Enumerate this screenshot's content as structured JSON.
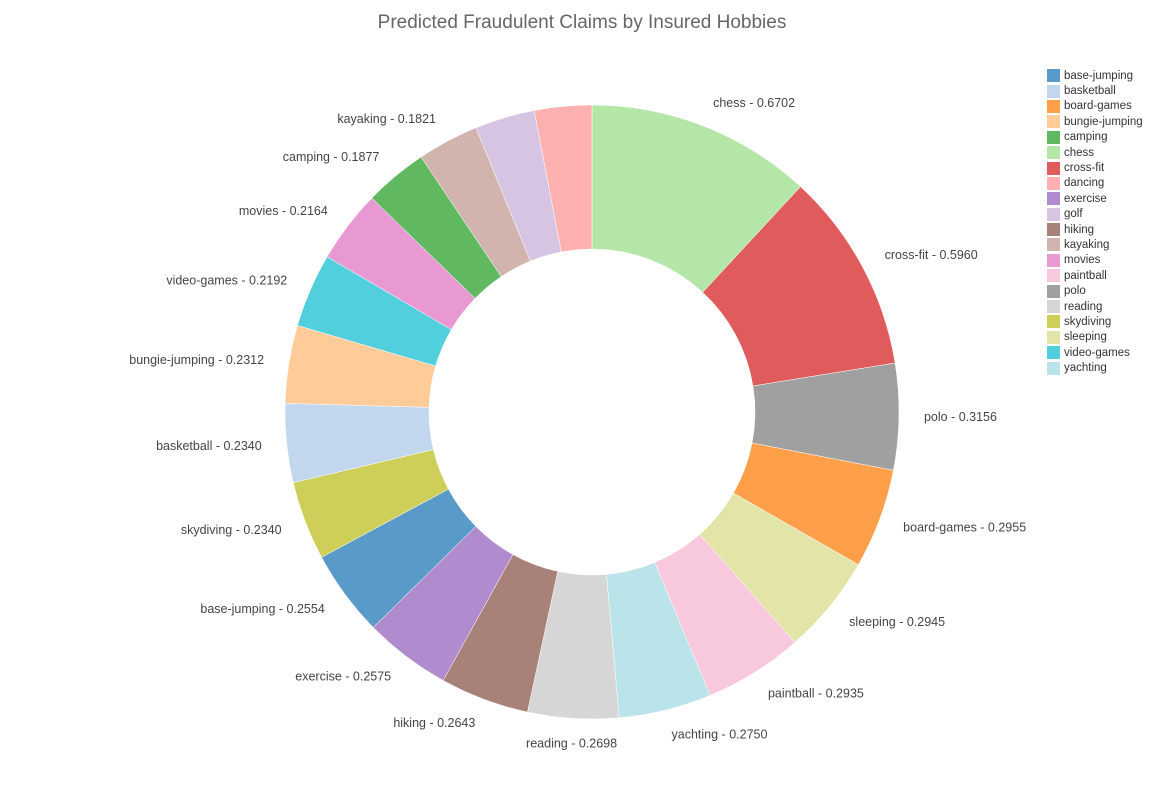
{
  "chart_data": {
    "type": "pie",
    "title": "Predicted Fraudulent Claims by Insured Hobbies",
    "hole": true,
    "legend_position": "top-right",
    "slices": [
      {
        "label": "chess",
        "value": 0.6702,
        "color": "#b3e6a7"
      },
      {
        "label": "cross-fit",
        "value": 0.596,
        "color": "#e05c5c"
      },
      {
        "label": "polo",
        "value": 0.3156,
        "color": "#a0a0a0"
      },
      {
        "label": "board-games",
        "value": 0.2955,
        "color": "#ff9f4a"
      },
      {
        "label": "sleeping",
        "value": 0.2945,
        "color": "#e2e4a8"
      },
      {
        "label": "paintball",
        "value": 0.2935,
        "color": "#f8c8dc"
      },
      {
        "label": "yachting",
        "value": 0.275,
        "color": "#bae3ea"
      },
      {
        "label": "reading",
        "value": 0.2698,
        "color": "#d6d6d6"
      },
      {
        "label": "hiking",
        "value": 0.2643,
        "color": "#a88178"
      },
      {
        "label": "exercise",
        "value": 0.2575,
        "color": "#b08ccf"
      },
      {
        "label": "base-jumping",
        "value": 0.2554,
        "color": "#599ac9"
      },
      {
        "label": "skydiving",
        "value": 0.234,
        "color": "#cdcf59"
      },
      {
        "label": "basketball",
        "value": 0.234,
        "color": "#c2d6ee"
      },
      {
        "label": "bungie-jumping",
        "value": 0.2312,
        "color": "#ffcc99"
      },
      {
        "label": "video-games",
        "value": 0.2192,
        "color": "#52cfdd"
      },
      {
        "label": "movies",
        "value": 0.2164,
        "color": "#e899d2"
      },
      {
        "label": "camping",
        "value": 0.1877,
        "color": "#60b860"
      },
      {
        "label": "kayaking",
        "value": 0.1821,
        "color": "#d2b4ae"
      },
      {
        "label": "golf",
        "value": 0.178,
        "color": "#d6c4e2"
      },
      {
        "label": "dancing",
        "value": 0.17,
        "color": "#ffb0b0"
      }
    ],
    "legend": [
      "base-jumping",
      "basketball",
      "board-games",
      "bungie-jumping",
      "camping",
      "chess",
      "cross-fit",
      "dancing",
      "exercise",
      "golf",
      "hiking",
      "kayaking",
      "movies",
      "paintball",
      "polo",
      "reading",
      "skydiving",
      "sleeping",
      "video-games",
      "yachting"
    ]
  }
}
